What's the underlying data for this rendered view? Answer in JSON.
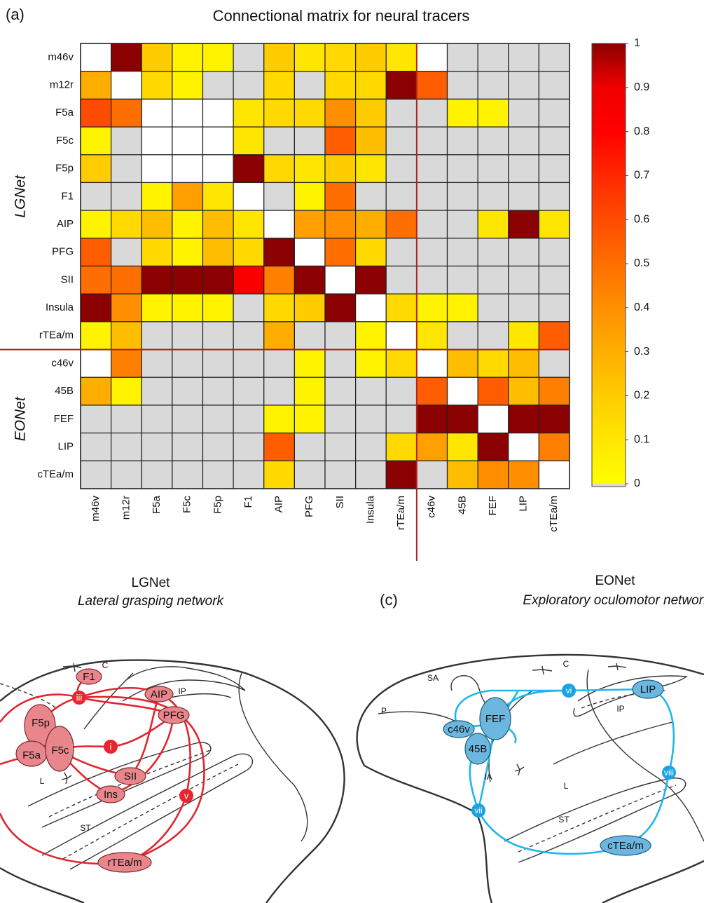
{
  "figure_label": "(a)",
  "chart_data": {
    "type": "heatmap",
    "title": "Connectional matrix for neural tracers",
    "categories": [
      "m46v",
      "m12r",
      "F5a",
      "F5c",
      "F5p",
      "F1",
      "AIP",
      "PFG",
      "SII",
      "Insula",
      "rTEa/m",
      "c46v",
      "45B",
      "FEF",
      "LIP",
      "cTEa/m"
    ],
    "groups": [
      {
        "name": "LGNet",
        "start": 0
      },
      {
        "name": "EONet",
        "start": 11
      }
    ],
    "values": [
      [
        null,
        1,
        0.2,
        0.05,
        0.05,
        0,
        0.2,
        0.1,
        0.15,
        0.2,
        0.1,
        null,
        0,
        0,
        0,
        0
      ],
      [
        0.3,
        null,
        0.15,
        0.05,
        0,
        0,
        0.15,
        0,
        0.15,
        0.15,
        1,
        0.55,
        0,
        0,
        0,
        0
      ],
      [
        0.6,
        0.5,
        null,
        null,
        null,
        0.1,
        0.15,
        0.15,
        0.4,
        0.2,
        0,
        0,
        0.05,
        0.05,
        0,
        0
      ],
      [
        0.05,
        0,
        null,
        null,
        null,
        0.1,
        0,
        0,
        0.55,
        0.25,
        0,
        0,
        0,
        0,
        0,
        0
      ],
      [
        0.2,
        0,
        null,
        null,
        null,
        1,
        0.15,
        0.1,
        0.2,
        0.1,
        0,
        0,
        0,
        0,
        0,
        0
      ],
      [
        0,
        0,
        0.05,
        0.35,
        0.1,
        null,
        0,
        0.05,
        0.5,
        0,
        0,
        0,
        0,
        0,
        0,
        0
      ],
      [
        0.05,
        0.15,
        0.25,
        0.05,
        0.25,
        0.1,
        null,
        0.35,
        0.4,
        0.3,
        0.5,
        0,
        0,
        0.1,
        1,
        0.1
      ],
      [
        0.55,
        0,
        0.15,
        0.05,
        0.25,
        0.15,
        1,
        null,
        0.5,
        0.15,
        0,
        0,
        0,
        0,
        0,
        0
      ],
      [
        0.5,
        0.5,
        1,
        1,
        1,
        0.85,
        0.45,
        1,
        null,
        1,
        0,
        0,
        0,
        0,
        0,
        0
      ],
      [
        1,
        0.4,
        0.05,
        0.05,
        0.05,
        0,
        0.15,
        0.2,
        1,
        null,
        0.15,
        0.05,
        0.05,
        0,
        0,
        0
      ],
      [
        0.05,
        0.25,
        0,
        0,
        0,
        0,
        0.3,
        0,
        0,
        0.05,
        null,
        0.1,
        0,
        0,
        0.1,
        0.55
      ],
      [
        null,
        0.45,
        0,
        0,
        0,
        0,
        0,
        0.05,
        0,
        0.05,
        0.15,
        null,
        0.25,
        0.15,
        0.25,
        0
      ],
      [
        0.3,
        0.05,
        0,
        0,
        0,
        0,
        0,
        0.05,
        0,
        0,
        0,
        0.55,
        null,
        0.55,
        0.25,
        0.45
      ],
      [
        0,
        0,
        0,
        0,
        0,
        0,
        0.05,
        0.05,
        0,
        0,
        0,
        1,
        1,
        null,
        1,
        1
      ],
      [
        0,
        0,
        0,
        0,
        0,
        0,
        0.55,
        0,
        0,
        0,
        0.15,
        0.35,
        0.1,
        1,
        null,
        0.45
      ],
      [
        0,
        0,
        0,
        0,
        0,
        0,
        0.15,
        0,
        0,
        0,
        1,
        0,
        0.25,
        0.4,
        0.4,
        null
      ]
    ],
    "colormap": [
      "#ffff00",
      "#ffe600",
      "#ffcc00",
      "#ffae00",
      "#ff8f00",
      "#ff6e00",
      "#ff4c00",
      "#ff2800",
      "#ff0000",
      "#f00000",
      "#8b0000"
    ],
    "zero_color": "#d9d9d9",
    "empty_color": "#ffffff",
    "separator_color": "#b0231f",
    "colorbar_lim": [
      0,
      1
    ],
    "colorbar_ticks": [
      0,
      0.1,
      0.2,
      0.3,
      0.4,
      0.5,
      0.6,
      0.7,
      0.8,
      0.9,
      1
    ]
  },
  "diagrams": [
    {
      "title": "LGNet",
      "subtitle": "Lateral grasping network",
      "regions": [
        "F1",
        "F5p",
        "F5a",
        "F5c",
        "AIP",
        "PFG",
        "SII",
        "Ins",
        "rTEa/m"
      ],
      "hubs": [
        "i",
        "iii",
        "v"
      ],
      "sulci": [
        "C",
        "IP",
        "L",
        "ST"
      ]
    },
    {
      "panel_label": "(c)",
      "title": "EONet",
      "subtitle": "Exploratory oculomotor network",
      "regions": [
        "FEF",
        "c46v",
        "45B",
        "LIP",
        "cTEa/m"
      ],
      "hubs": [
        "vi",
        "vii",
        "viii"
      ],
      "sulci": [
        "C",
        "SA",
        "IP",
        "P",
        "IA",
        "L",
        "ST"
      ]
    }
  ]
}
